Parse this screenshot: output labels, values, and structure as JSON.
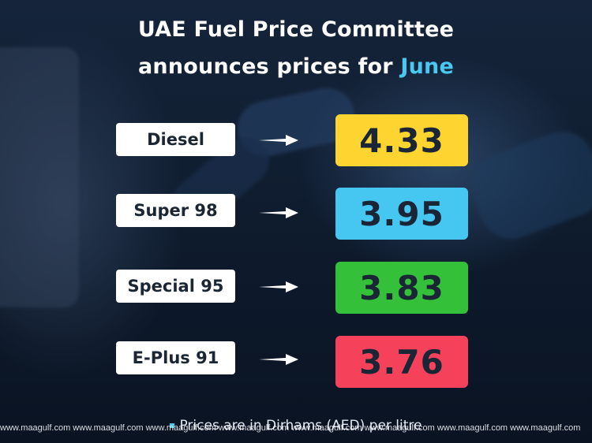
{
  "title": {
    "line1": "UAE Fuel Price Committee",
    "line2_prefix": "announces prices for ",
    "line2_highlight": "June"
  },
  "fuels": [
    {
      "name": "Diesel",
      "price": "4.33",
      "color": "#fdd430"
    },
    {
      "name": "Super 98",
      "price": "3.95",
      "color": "#45c7f2"
    },
    {
      "name": "Special 95",
      "price": "3.83",
      "color": "#35c03a"
    },
    {
      "name": "E-Plus 91",
      "price": "3.76",
      "color": "#f5415a"
    }
  ],
  "footnote": "Prices are in Dirhams (AED) per litre",
  "watermark": "www.maagulf.com   www.maagulf.com   www.maagulf.com   www.maagulf.com   www.maagulf.com   www.maagulf.com   www.maagulf.com   www.maagulf.com",
  "colors": {
    "accent": "#49c8f2",
    "title_text": "#ffffff",
    "label_bg": "#ffffff"
  },
  "icons": [
    "arrow-right-icon"
  ]
}
